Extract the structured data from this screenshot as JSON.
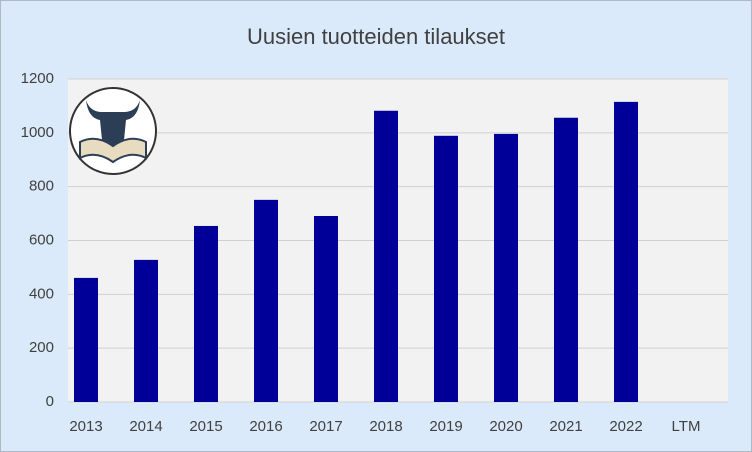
{
  "chart_data": {
    "type": "bar",
    "title": "Uusien tuotteiden tilaukset",
    "categories": [
      "2013",
      "2014",
      "2015",
      "2016",
      "2017",
      "2018",
      "2019",
      "2020",
      "2021",
      "2022",
      "LTM"
    ],
    "values": [
      461,
      528,
      654,
      751,
      691,
      1082,
      989,
      996,
      1056,
      1115,
      null
    ],
    "color": "#000099",
    "ylim": [
      0,
      1200
    ],
    "yticks": [
      0,
      200,
      400,
      600,
      800,
      1000,
      1200
    ],
    "grid": true
  }
}
